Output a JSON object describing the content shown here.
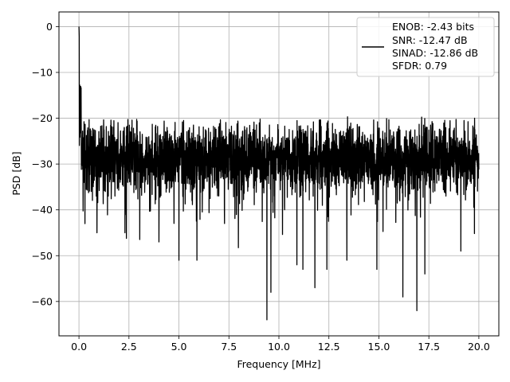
{
  "chart_data": {
    "type": "line",
    "title": "",
    "xlabel": "Frequency [MHz]",
    "ylabel": "PSD [dB]",
    "xlim": [
      -1.0,
      21.0
    ],
    "ylim": [
      -67.5,
      3.2
    ],
    "grid": true,
    "legend_placement": "top-right",
    "x_ticks": [
      0.0,
      2.5,
      5.0,
      7.5,
      10.0,
      12.5,
      15.0,
      17.5,
      20.0
    ],
    "x_tick_labels": [
      "0.0",
      "2.5",
      "5.0",
      "7.5",
      "10.0",
      "12.5",
      "15.0",
      "17.5",
      "20.0"
    ],
    "y_ticks": [
      0,
      -10,
      -20,
      -30,
      -40,
      -50,
      -60
    ],
    "y_tick_labels": [
      "0",
      "−10",
      "−20",
      "−30",
      "−40",
      "−50",
      "−60"
    ],
    "legend": {
      "lines": [
        "ENOB: -2.43 bits",
        "SNR: -12.47 dB",
        "SINAD: -12.86 dB",
        "SFDR: 0.79"
      ],
      "line_color": "#000000"
    },
    "series": [
      {
        "color": "#000000",
        "x_range": [
          0.0,
          20.0
        ],
        "noise_floor_db": -28,
        "peak": {
          "x": 0.0,
          "y": 0
        },
        "low_dips": [
          {
            "x": 9.4,
            "y": -64
          },
          {
            "x": 9.6,
            "y": -58
          },
          {
            "x": 11.8,
            "y": -57
          },
          {
            "x": 16.2,
            "y": -59
          },
          {
            "x": 16.9,
            "y": -62
          },
          {
            "x": 17.3,
            "y": -54
          },
          {
            "x": 11.2,
            "y": -53
          },
          {
            "x": 12.4,
            "y": -53
          },
          {
            "x": 14.9,
            "y": -53
          },
          {
            "x": 5.0,
            "y": -51
          },
          {
            "x": 5.9,
            "y": -51
          },
          {
            "x": 4.0,
            "y": -47
          },
          {
            "x": 2.3,
            "y": -45
          },
          {
            "x": 0.3,
            "y": -43
          },
          {
            "x": 0.9,
            "y": -45
          },
          {
            "x": 10.9,
            "y": -52
          },
          {
            "x": 13.4,
            "y": -51
          },
          {
            "x": 19.1,
            "y": -49
          }
        ]
      }
    ]
  }
}
